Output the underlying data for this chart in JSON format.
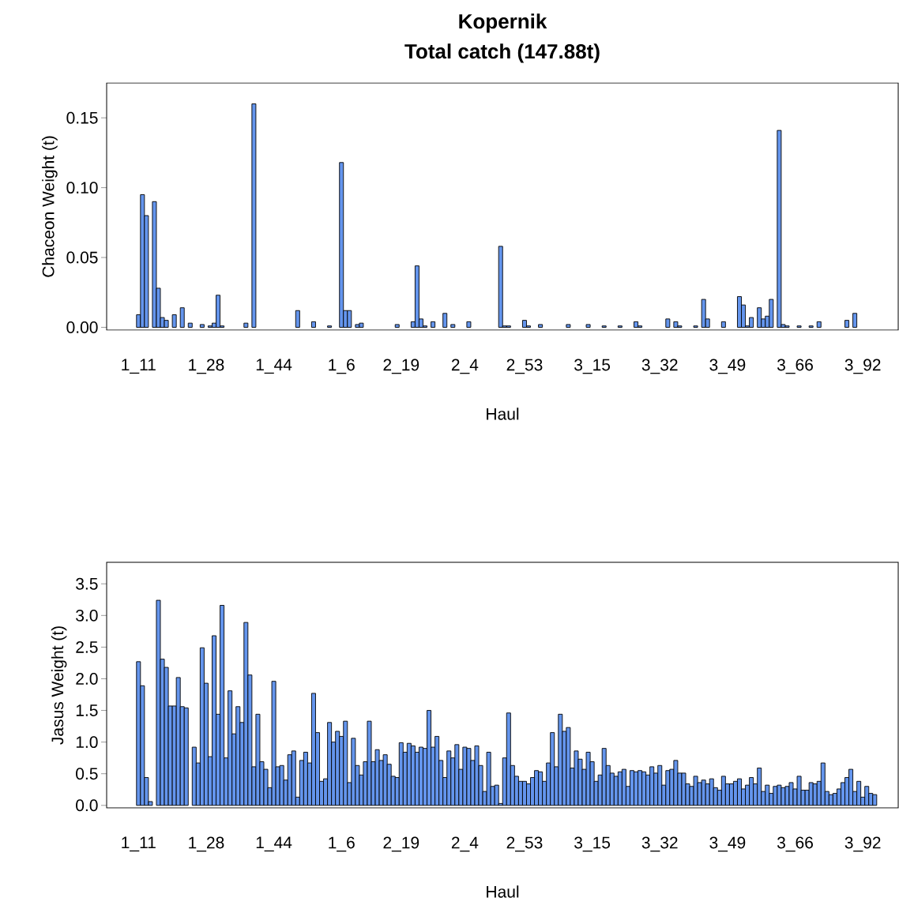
{
  "chart_data": [
    {
      "type": "bar",
      "title": "Kopernik",
      "subtitle": "Total catch (147.88t)",
      "xlabel": "Haul",
      "ylabel": "Chaceon Weight (t)",
      "color": "#6495ed",
      "ylim": [
        -0.002,
        0.175
      ],
      "yticks": [
        {
          "value": 0,
          "label": "0.00"
        },
        {
          "value": 0.05,
          "label": "0.05"
        },
        {
          "value": 0.1,
          "label": "0.10"
        },
        {
          "value": 0.15,
          "label": "0.15"
        }
      ],
      "categories": [
        "1_11",
        null,
        null,
        null,
        null,
        null,
        null,
        null,
        null,
        null,
        null,
        null,
        null,
        null,
        null,
        null,
        null,
        "1_28",
        null,
        null,
        null,
        null,
        null,
        null,
        null,
        null,
        null,
        null,
        null,
        null,
        null,
        null,
        null,
        null,
        "1_44",
        null,
        null,
        null,
        null,
        null,
        null,
        null,
        null,
        null,
        null,
        null,
        null,
        null,
        null,
        null,
        null,
        "1_6",
        null,
        null,
        null,
        null,
        null,
        null,
        null,
        null,
        null,
        null,
        null,
        null,
        null,
        null,
        "2_19",
        null,
        null,
        null,
        null,
        null,
        null,
        null,
        null,
        null,
        null,
        null,
        null,
        null,
        null,
        null,
        "2_4",
        null,
        null,
        null,
        null,
        null,
        null,
        null,
        null,
        null,
        null,
        null,
        null,
        null,
        null,
        "2_53",
        null,
        null,
        null,
        null,
        null,
        null,
        null,
        null,
        null,
        null,
        null,
        null,
        null,
        null,
        null,
        null,
        "3_15",
        null,
        null,
        null,
        null,
        null,
        null,
        null,
        null,
        null,
        null,
        null,
        null,
        null,
        null,
        null,
        null,
        "3_32",
        null,
        null,
        null,
        null,
        null,
        null,
        null,
        null,
        null,
        null,
        null,
        null,
        null,
        null,
        null,
        null,
        "3_49",
        null,
        null,
        null,
        null,
        null,
        null,
        null,
        null,
        null,
        null,
        null,
        null,
        null,
        null,
        null,
        null,
        "3_66",
        null,
        null,
        null,
        null,
        null,
        null,
        null,
        null,
        null,
        null,
        null,
        null,
        null,
        null,
        null,
        null,
        "3_92",
        null,
        null,
        null
      ],
      "values": [
        0.009,
        0.095,
        0.08,
        null,
        0.09,
        0.028,
        0.007,
        0.005,
        0,
        0.009,
        0,
        0.014,
        0,
        0.003,
        0,
        0,
        0.002,
        0,
        0.001,
        0.003,
        0.023,
        0.001,
        0,
        0,
        0,
        0,
        0,
        0.003,
        0,
        0.16,
        0,
        0,
        0,
        0,
        0,
        0,
        0,
        0,
        0,
        0,
        0.012,
        0,
        0,
        0,
        0.004,
        0,
        0,
        0,
        0.001,
        0,
        0,
        0.118,
        0.012,
        0.012,
        0,
        0.002,
        0.003,
        0,
        0,
        0,
        0,
        0,
        0,
        0,
        0,
        0.002,
        0,
        0,
        0,
        0.004,
        0.044,
        0.006,
        0.001,
        0,
        0.004,
        0,
        0,
        0.01,
        0,
        0.002,
        0,
        0,
        0,
        0.004,
        null,
        0,
        0,
        0,
        0,
        0,
        0,
        0.058,
        0.001,
        0.001,
        0,
        0,
        0,
        0.005,
        0.001,
        0,
        0,
        0.002,
        0,
        0,
        0,
        0,
        0,
        0,
        0.002,
        0,
        0,
        0,
        0,
        0.002,
        0,
        0,
        0,
        0.001,
        0,
        0,
        0,
        0.001,
        0,
        0,
        0,
        0.004,
        0.001,
        0,
        0,
        0,
        0,
        0,
        0,
        0.006,
        0,
        0.004,
        0.001,
        0,
        0,
        0,
        0.001,
        0,
        0.02,
        0.006,
        0,
        0,
        null,
        0.004,
        0,
        0,
        0,
        0.022,
        0.016,
        0.001,
        0.007,
        0,
        0.014,
        0.006,
        0.008,
        0.02,
        0,
        0.141,
        0.002,
        0.001,
        0,
        0,
        0.001,
        0,
        0,
        0.001,
        null,
        0.004,
        0,
        0,
        0,
        0,
        0,
        0,
        0.005,
        0,
        0.01,
        0,
        0,
        0,
        0,
        0
      ]
    },
    {
      "type": "bar",
      "xlabel": "Haul",
      "ylabel": "Jasus Weight (t)",
      "color": "#6495ed",
      "ylim": [
        -0.04,
        3.84
      ],
      "yticks": [
        {
          "value": 0,
          "label": "0.0"
        },
        {
          "value": 0.5,
          "label": "0.5"
        },
        {
          "value": 1,
          "label": "1.0"
        },
        {
          "value": 1.5,
          "label": "1.5"
        },
        {
          "value": 2,
          "label": "2.0"
        },
        {
          "value": 2.5,
          "label": "2.5"
        },
        {
          "value": 3,
          "label": "3.0"
        },
        {
          "value": 3.5,
          "label": "3.5"
        }
      ],
      "categories": [
        "1_11",
        null,
        null,
        null,
        null,
        null,
        null,
        null,
        null,
        null,
        null,
        null,
        null,
        null,
        null,
        null,
        null,
        "1_28",
        null,
        null,
        null,
        null,
        null,
        null,
        null,
        null,
        null,
        null,
        null,
        null,
        null,
        null,
        null,
        null,
        "1_44",
        null,
        null,
        null,
        null,
        null,
        null,
        null,
        null,
        null,
        null,
        null,
        null,
        null,
        null,
        null,
        null,
        "1_6",
        null,
        null,
        null,
        null,
        null,
        null,
        null,
        null,
        null,
        null,
        null,
        null,
        null,
        null,
        "2_19",
        null,
        null,
        null,
        null,
        null,
        null,
        null,
        null,
        null,
        null,
        null,
        null,
        null,
        null,
        null,
        "2_4",
        null,
        null,
        null,
        null,
        null,
        null,
        null,
        null,
        null,
        null,
        null,
        null,
        null,
        null,
        "2_53",
        null,
        null,
        null,
        null,
        null,
        null,
        null,
        null,
        null,
        null,
        null,
        null,
        null,
        null,
        null,
        null,
        "3_15",
        null,
        null,
        null,
        null,
        null,
        null,
        null,
        null,
        null,
        null,
        null,
        null,
        null,
        null,
        null,
        null,
        "3_32",
        null,
        null,
        null,
        null,
        null,
        null,
        null,
        null,
        null,
        null,
        null,
        null,
        null,
        null,
        null,
        null,
        "3_49",
        null,
        null,
        null,
        null,
        null,
        null,
        null,
        null,
        null,
        null,
        null,
        null,
        null,
        null,
        null,
        null,
        "3_66",
        null,
        null,
        null,
        null,
        null,
        null,
        null,
        null,
        null,
        null,
        null,
        null,
        null,
        null,
        null,
        null,
        "3_92",
        null,
        null,
        null
      ],
      "values": [
        2.27,
        1.89,
        0.44,
        0.06,
        null,
        3.24,
        2.31,
        2.18,
        1.57,
        1.57,
        2.02,
        1.56,
        1.54,
        null,
        0.92,
        0.67,
        2.49,
        1.93,
        0.77,
        2.68,
        1.44,
        3.16,
        0.75,
        1.81,
        1.13,
        1.56,
        1.31,
        2.89,
        2.06,
        0.61,
        1.44,
        0.69,
        0.57,
        0.28,
        1.96,
        0.61,
        0.63,
        0.4,
        0.8,
        0.86,
        0.13,
        0.71,
        0.84,
        0.67,
        1.77,
        1.15,
        0.38,
        0.42,
        1.31,
        1.0,
        1.17,
        1.09,
        1.33,
        0.36,
        1.06,
        0.63,
        0.48,
        0.69,
        1.33,
        0.69,
        0.88,
        0.71,
        0.8,
        0.65,
        0.46,
        0.44,
        0.99,
        0.84,
        0.98,
        0.94,
        0.84,
        0.92,
        0.9,
        1.5,
        0.92,
        1.09,
        0.71,
        0.44,
        0.86,
        0.75,
        0.96,
        0.57,
        0.92,
        0.9,
        0.71,
        0.94,
        0.63,
        0.22,
        0.84,
        0.3,
        0.32,
        0.03,
        0.75,
        1.46,
        0.63,
        0.46,
        0.38,
        0.38,
        0.34,
        0.44,
        0.55,
        0.53,
        0.38,
        0.67,
        1.15,
        0.61,
        1.44,
        1.17,
        1.23,
        0.59,
        0.86,
        0.73,
        0.57,
        0.84,
        0.69,
        0.38,
        0.48,
        0.9,
        0.63,
        0.51,
        0.46,
        0.53,
        0.57,
        0.3,
        0.55,
        0.53,
        0.55,
        0.53,
        0.48,
        0.61,
        0.51,
        0.63,
        0.32,
        0.55,
        0.57,
        0.71,
        0.51,
        0.51,
        0.34,
        0.3,
        0.46,
        0.36,
        0.4,
        0.34,
        0.42,
        0.28,
        0.24,
        0.46,
        0.34,
        0.34,
        0.38,
        0.42,
        0.26,
        0.32,
        0.44,
        0.34,
        0.59,
        0.22,
        0.32,
        0.19,
        0.3,
        0.32,
        0.28,
        0.3,
        0.36,
        0.26,
        0.46,
        0.24,
        0.24,
        0.36,
        0.34,
        0.38,
        0.67,
        0.22,
        0.17,
        0.19,
        0.26,
        0.36,
        0.44,
        0.57,
        0.22,
        0.38,
        0.13,
        0.3,
        0.19,
        0.17
      ]
    }
  ]
}
